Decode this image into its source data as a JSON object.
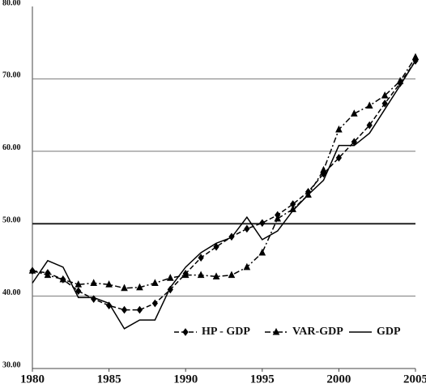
{
  "chart_data": {
    "type": "line",
    "x": [
      1980,
      1981,
      1982,
      1983,
      1984,
      1985,
      1986,
      1987,
      1988,
      1989,
      1990,
      1991,
      1992,
      1993,
      1994,
      1995,
      1996,
      1997,
      1998,
      1999,
      2000,
      2001,
      2002,
      2003,
      2004,
      2005
    ],
    "xlim": [
      1980,
      2005
    ],
    "xticks": [
      1980,
      1985,
      1990,
      1995,
      2000,
      2005
    ],
    "ylim": [
      30,
      80
    ],
    "yticks": [
      {
        "value": 30,
        "label": "30.00"
      },
      {
        "value": 40,
        "label": "40.00"
      },
      {
        "value": 50,
        "label": "50.00"
      },
      {
        "value": 60,
        "label": "60.00"
      },
      {
        "value": 70,
        "label": "70.00"
      },
      {
        "value": 80,
        "label": "80.00"
      }
    ],
    "grid": true,
    "legend": "lower right",
    "series": [
      {
        "name": "HP - GDP",
        "color": "#000000",
        "dash": "dashed",
        "marker": "diamond",
        "values": [
          43.5,
          43.2,
          42.3,
          40.7,
          39.6,
          38.7,
          38.1,
          38.1,
          39.0,
          40.9,
          43.1,
          45.3,
          46.8,
          48.2,
          49.3,
          50.1,
          51.2,
          52.7,
          54.4,
          56.9,
          59.1,
          61.3,
          63.6,
          66.6,
          69.4,
          72.5
        ]
      },
      {
        "name": "VAR-GDP",
        "color": "#000000",
        "dash": "dashdot",
        "marker": "triangle",
        "values": [
          43.5,
          42.9,
          42.3,
          41.6,
          41.8,
          41.6,
          41.1,
          41.2,
          41.8,
          42.5,
          42.9,
          42.9,
          42.7,
          42.9,
          44.0,
          46.0,
          50.7,
          52.0,
          54.0,
          57.4,
          63.0,
          65.2,
          66.3,
          67.7,
          69.7,
          73.0
        ]
      },
      {
        "name": "GDP",
        "color": "#000000",
        "dash": "solid",
        "values": [
          41.8,
          44.9,
          44.0,
          39.8,
          39.8,
          39.0,
          35.5,
          36.7,
          36.7,
          41.2,
          44.0,
          46.0,
          47.3,
          48.1,
          50.9,
          47.8,
          49.0,
          51.8,
          54.0,
          56.0,
          60.8,
          60.8,
          62.5,
          65.8,
          69.1,
          72.5
        ]
      }
    ]
  }
}
